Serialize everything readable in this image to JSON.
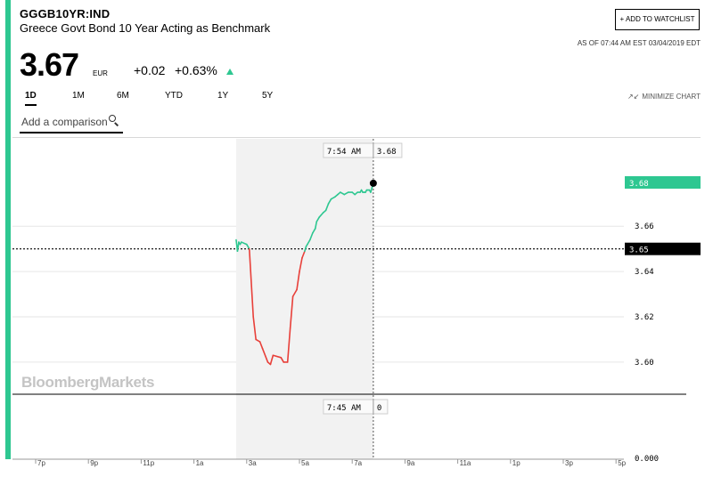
{
  "header": {
    "ticker": "GGGB10YR:IND",
    "name": "Greece Govt Bond 10 Year Acting as Benchmark",
    "watchlist_label": "+ ADD TO WATCHLIST",
    "as_of": "AS OF 07:44 AM EST 03/04/2019 EDT"
  },
  "quote": {
    "price": "3.67",
    "currency": "EUR",
    "change": "+0.02",
    "change_pct": "+0.63%",
    "direction_icon": "triangle-up-icon",
    "up_color": "#2ec791"
  },
  "tabs": [
    "1D",
    "1M",
    "6M",
    "YTD",
    "1Y",
    "5Y"
  ],
  "active_tab": "1D",
  "minimize_label": "MINIMIZE CHART",
  "comparison": {
    "placeholder": "Add a comparison"
  },
  "watermark": "BloombergMarkets",
  "chart_data": {
    "type": "line",
    "up_color": "#2ec791",
    "down_color": "#e8403a",
    "reference_value": 3.65,
    "ylim": [
      3.587,
      3.699
    ],
    "yticks": [
      3.66,
      3.64,
      3.62,
      3.6
    ],
    "ytick_labels": [
      "3.66",
      "3.64",
      "3.62",
      "3.60"
    ],
    "xticks": [
      "7p",
      "9p",
      "11p",
      "1a",
      "3a",
      "5a",
      "7a",
      "9a",
      "11a",
      "1p",
      "3p",
      "5p"
    ],
    "series": [
      {
        "x_hours": [
          2.6,
          2.65,
          2.7,
          2.75,
          2.8,
          3.0,
          3.1,
          3.2,
          3.25,
          3.35,
          3.5,
          3.6,
          3.8,
          3.9,
          4.0,
          4.3,
          4.4,
          4.55,
          4.65,
          4.75,
          4.9,
          5.0,
          5.1,
          5.2,
          5.25,
          5.3,
          5.4,
          5.5,
          5.6,
          5.65,
          5.75,
          5.9,
          6.0,
          6.1,
          6.2,
          6.35,
          6.45,
          6.55,
          6.7,
          6.85,
          7.0,
          7.1,
          7.2,
          7.3,
          7.35,
          7.4,
          7.45,
          7.5,
          7.55,
          7.6,
          7.65,
          7.7,
          7.75,
          7.8
        ],
        "values": [
          3.654,
          3.649,
          3.653,
          3.652,
          3.653,
          3.652,
          3.65,
          3.63,
          3.62,
          3.61,
          3.609,
          3.606,
          3.6,
          3.599,
          3.603,
          3.602,
          3.6,
          3.6,
          3.615,
          3.629,
          3.632,
          3.64,
          3.646,
          3.649,
          3.651,
          3.652,
          3.654,
          3.657,
          3.659,
          3.662,
          3.664,
          3.666,
          3.667,
          3.67,
          3.672,
          3.673,
          3.674,
          3.675,
          3.674,
          3.675,
          3.675,
          3.674,
          3.675,
          3.675,
          3.676,
          3.675,
          3.675,
          3.675,
          3.676,
          3.676,
          3.676,
          3.675,
          3.677,
          3.679
        ]
      }
    ],
    "cursor": {
      "time_label": "7:54 AM",
      "value_label": "3.68",
      "volume_time_label": "7:45 AM",
      "volume_value_label": "0"
    },
    "last_value_label": "3.68",
    "reference_label": "3.65",
    "volume_axis_label": "0.000"
  }
}
